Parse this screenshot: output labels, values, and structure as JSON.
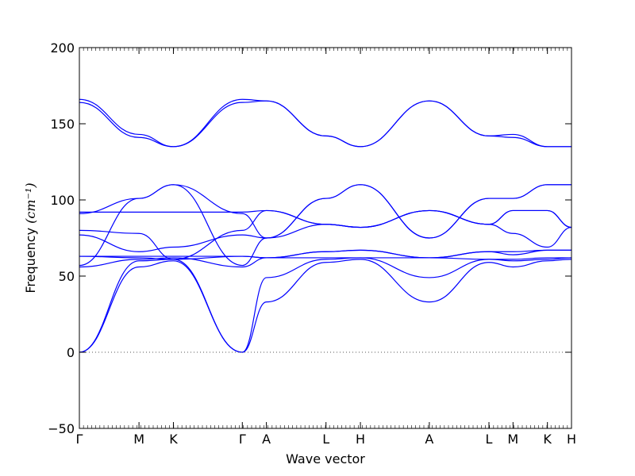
{
  "chart_data": {
    "type": "line",
    "title": "",
    "xlabel": "Wave vector",
    "ylabel": "Frequency ",
    "ylabel_unit": "(cm⁻¹)",
    "ylim": [
      -50,
      200
    ],
    "yticks": [
      -50,
      0,
      50,
      100,
      150,
      200
    ],
    "grid": false,
    "legend": "none",
    "line_color": "#0000ff",
    "zero_line_color": "#555555",
    "x_high_symmetry": [
      {
        "label": "Γ",
        "x": 0.0
      },
      {
        "label": "M",
        "x": 0.577
      },
      {
        "label": "K",
        "x": 0.91
      },
      {
        "label": "Γ",
        "x": 1.577
      },
      {
        "label": "A",
        "x": 1.81
      },
      {
        "label": "L",
        "x": 2.387
      },
      {
        "label": "H",
        "x": 2.72
      },
      {
        "label": "A",
        "x": 3.387
      },
      {
        "label": "L",
        "x": 3.964
      },
      {
        "label": "M",
        "x": 4.197
      },
      {
        "label": "K",
        "x": 4.53
      },
      {
        "label": "H",
        "x": 4.763
      }
    ],
    "xlim": [
      0,
      4.763
    ],
    "series": [
      {
        "x": [
          0,
          0.577,
          0.91,
          1.577,
          1.81,
          2.387,
          2.72,
          3.387,
          3.964,
          4.197,
          4.53,
          4.763
        ],
        "values": [
          0,
          56,
          60,
          0,
          33,
          59,
          61,
          33,
          59,
          56,
          60,
          61
        ]
      },
      {
        "x": [
          0,
          0.577,
          0.91,
          1.577,
          1.81,
          2.387,
          2.72,
          3.387,
          3.964,
          4.197,
          4.53,
          4.763
        ],
        "values": [
          0,
          60,
          61,
          0,
          49,
          61,
          62,
          49,
          61,
          60,
          61,
          62
        ]
      },
      {
        "x": [
          0,
          0.577,
          0.91,
          1.577,
          1.81,
          2.387,
          2.72,
          3.387,
          3.964,
          4.197,
          4.53,
          4.763
        ],
        "values": [
          56,
          61,
          62,
          56,
          62,
          62,
          62,
          62,
          61,
          61,
          62,
          62
        ]
      },
      {
        "x": [
          0,
          0.577,
          0.91,
          1.577,
          1.81,
          2.387,
          2.72,
          3.387,
          3.964,
          4.197,
          4.53,
          4.763
        ],
        "values": [
          57,
          101,
          110,
          57,
          75,
          101,
          110,
          75,
          101,
          101,
          110,
          110
        ]
      },
      {
        "x": [
          0,
          0.577,
          0.91,
          1.577,
          1.81,
          2.387,
          2.72,
          3.387,
          3.964,
          4.197,
          4.53,
          4.763
        ],
        "values": [
          63,
          62,
          61,
          63,
          62,
          66,
          67,
          62,
          66,
          64,
          67,
          67
        ]
      },
      {
        "x": [
          0,
          0.577,
          0.91,
          1.577,
          1.81,
          2.387,
          2.72,
          3.387,
          3.964,
          4.197,
          4.53,
          4.763
        ],
        "values": [
          63,
          63,
          63,
          63,
          62,
          66,
          67,
          62,
          66,
          66,
          67,
          67
        ]
      },
      {
        "x": [
          0,
          0.577,
          0.91,
          1.577,
          1.81,
          2.387,
          2.72,
          3.387,
          3.964,
          4.197,
          4.53,
          4.763
        ],
        "values": [
          77,
          66,
          69,
          77,
          75,
          84,
          82,
          93,
          84,
          78,
          69,
          82
        ]
      },
      {
        "x": [
          0,
          0.577,
          0.91,
          1.577,
          1.81,
          2.387,
          2.72,
          3.387,
          3.964,
          4.197,
          4.53,
          4.763
        ],
        "values": [
          80,
          78,
          61,
          80,
          93,
          84,
          82,
          93,
          84,
          93,
          93,
          82
        ]
      },
      {
        "x": [
          0,
          0.577,
          0.91,
          1.577,
          1.81,
          2.387,
          2.72,
          3.387,
          3.964,
          4.197,
          4.53,
          4.763
        ],
        "values": [
          92,
          92,
          92,
          92,
          93,
          84,
          82,
          93,
          84,
          93,
          93,
          82
        ]
      },
      {
        "x": [
          0,
          0.577,
          0.91,
          1.577,
          1.81,
          2.387,
          2.72,
          3.387,
          3.964,
          4.197,
          4.53,
          4.763
        ],
        "values": [
          91,
          101,
          110,
          91,
          75,
          101,
          110,
          75,
          101,
          101,
          110,
          110
        ]
      },
      {
        "x": [
          0,
          0.577,
          0.91,
          1.577,
          1.81,
          2.387,
          2.72,
          3.387,
          3.964,
          4.197,
          4.53,
          4.763
        ],
        "values": [
          164,
          141,
          135,
          164,
          165,
          142,
          135,
          165,
          142,
          141,
          135,
          135
        ]
      },
      {
        "x": [
          0,
          0.577,
          0.91,
          1.577,
          1.81,
          2.387,
          2.72,
          3.387,
          3.964,
          4.197,
          4.53,
          4.763
        ],
        "values": [
          166,
          143,
          135,
          166,
          165,
          142,
          135,
          165,
          142,
          143,
          135,
          135
        ]
      }
    ]
  }
}
